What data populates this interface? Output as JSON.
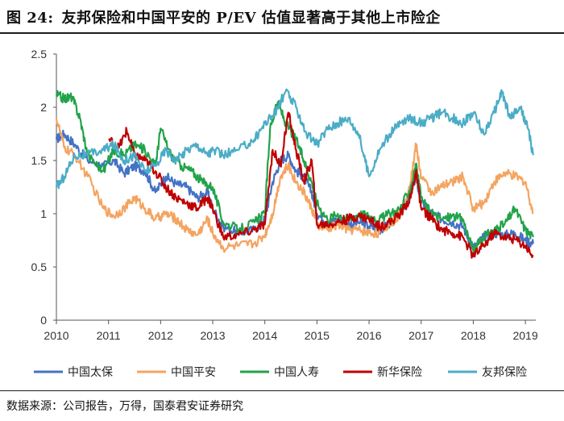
{
  "header": {
    "figure_label": "图 24:",
    "title": "友邦保险和中国平安的 P/EV 估值显著高于其他上市险企"
  },
  "source_note": "数据来源：公司报告，万得，国泰君安证券研究",
  "chart_data": {
    "type": "line",
    "title": "友邦保险和中国平安的 P/EV 估值显著高于其他上市险企",
    "xlabel": "",
    "ylabel": "",
    "xlim": [
      2010,
      2019.2
    ],
    "ylim": [
      0,
      2.5
    ],
    "x_ticks": [
      2010,
      2011,
      2012,
      2013,
      2014,
      2015,
      2016,
      2017,
      2018,
      2019
    ],
    "x_tick_labels": [
      "2010",
      "2011",
      "2012",
      "2013",
      "2014",
      "2015",
      "2016",
      "2017",
      "2018",
      "2019"
    ],
    "y_ticks": [
      0,
      0.5,
      1,
      1.5,
      2,
      2.5
    ],
    "y_tick_labels": [
      "0",
      "0.5",
      "1",
      "1.5",
      "2",
      "2.5"
    ],
    "grid": false,
    "legend_position": "bottom",
    "series": [
      {
        "name": "中国太保",
        "color": "#4472C4",
        "points": [
          [
            2010,
            1.7
          ],
          [
            2010.15,
            1.75
          ],
          [
            2010.35,
            1.65
          ],
          [
            2010.6,
            1.5
          ],
          [
            2010.9,
            1.45
          ],
          [
            2011.1,
            1.5
          ],
          [
            2011.3,
            1.38
          ],
          [
            2011.5,
            1.45
          ],
          [
            2011.7,
            1.4
          ],
          [
            2011.9,
            1.2
          ],
          [
            2012.1,
            1.35
          ],
          [
            2012.3,
            1.28
          ],
          [
            2012.5,
            1.25
          ],
          [
            2012.7,
            1.15
          ],
          [
            2012.9,
            1.2
          ],
          [
            2013.0,
            1.05
          ],
          [
            2013.2,
            0.88
          ],
          [
            2013.5,
            0.82
          ],
          [
            2013.8,
            0.85
          ],
          [
            2014.0,
            0.95
          ],
          [
            2014.15,
            1.3
          ],
          [
            2014.3,
            1.5
          ],
          [
            2014.45,
            1.55
          ],
          [
            2014.6,
            1.4
          ],
          [
            2014.75,
            1.35
          ],
          [
            2014.9,
            1.2
          ],
          [
            2015.0,
            1.0
          ],
          [
            2015.2,
            0.92
          ],
          [
            2015.4,
            0.95
          ],
          [
            2015.6,
            0.9
          ],
          [
            2015.8,
            0.92
          ],
          [
            2016.0,
            0.88
          ],
          [
            2016.2,
            0.85
          ],
          [
            2016.4,
            0.9
          ],
          [
            2016.6,
            1.0
          ],
          [
            2016.8,
            1.2
          ],
          [
            2016.9,
            1.35
          ],
          [
            2017.0,
            1.1
          ],
          [
            2017.2,
            1.0
          ],
          [
            2017.4,
            0.95
          ],
          [
            2017.6,
            0.92
          ],
          [
            2017.8,
            0.88
          ],
          [
            2018.0,
            0.68
          ],
          [
            2018.2,
            0.78
          ],
          [
            2018.4,
            0.82
          ],
          [
            2018.6,
            0.8
          ],
          [
            2018.8,
            0.82
          ],
          [
            2019.0,
            0.75
          ],
          [
            2019.15,
            0.72
          ]
        ]
      },
      {
        "name": "中国平安",
        "color": "#F4A460",
        "points": [
          [
            2010,
            1.9
          ],
          [
            2010.15,
            1.62
          ],
          [
            2010.35,
            1.55
          ],
          [
            2010.6,
            1.35
          ],
          [
            2010.9,
            1.05
          ],
          [
            2011.1,
            0.98
          ],
          [
            2011.3,
            1.05
          ],
          [
            2011.5,
            1.15
          ],
          [
            2011.7,
            1.05
          ],
          [
            2011.9,
            0.95
          ],
          [
            2012.1,
            1.0
          ],
          [
            2012.3,
            0.95
          ],
          [
            2012.5,
            0.85
          ],
          [
            2012.7,
            0.8
          ],
          [
            2012.9,
            0.95
          ],
          [
            2013.0,
            0.82
          ],
          [
            2013.2,
            0.68
          ],
          [
            2013.5,
            0.7
          ],
          [
            2013.8,
            0.72
          ],
          [
            2014.0,
            0.8
          ],
          [
            2014.15,
            1.0
          ],
          [
            2014.3,
            1.35
          ],
          [
            2014.45,
            1.45
          ],
          [
            2014.6,
            1.3
          ],
          [
            2014.75,
            1.2
          ],
          [
            2014.9,
            1.05
          ],
          [
            2015.0,
            0.9
          ],
          [
            2015.2,
            0.85
          ],
          [
            2015.4,
            0.9
          ],
          [
            2015.6,
            0.85
          ],
          [
            2015.8,
            0.85
          ],
          [
            2016.0,
            0.82
          ],
          [
            2016.2,
            0.82
          ],
          [
            2016.4,
            0.9
          ],
          [
            2016.6,
            1.0
          ],
          [
            2016.8,
            1.3
          ],
          [
            2016.9,
            1.65
          ],
          [
            2017.0,
            1.35
          ],
          [
            2017.2,
            1.2
          ],
          [
            2017.4,
            1.25
          ],
          [
            2017.6,
            1.3
          ],
          [
            2017.8,
            1.35
          ],
          [
            2018.0,
            1.05
          ],
          [
            2018.2,
            1.1
          ],
          [
            2018.4,
            1.3
          ],
          [
            2018.6,
            1.38
          ],
          [
            2018.8,
            1.35
          ],
          [
            2019.0,
            1.3
          ],
          [
            2019.15,
            1.0
          ]
        ]
      },
      {
        "name": "中国人寿",
        "color": "#22A34A",
        "points": [
          [
            2010,
            2.12
          ],
          [
            2010.15,
            2.08
          ],
          [
            2010.3,
            2.1
          ],
          [
            2010.45,
            1.9
          ],
          [
            2010.6,
            1.55
          ],
          [
            2010.9,
            1.4
          ],
          [
            2011.1,
            1.6
          ],
          [
            2011.3,
            1.55
          ],
          [
            2011.5,
            1.65
          ],
          [
            2011.7,
            1.6
          ],
          [
            2011.9,
            1.45
          ],
          [
            2012.0,
            1.8
          ],
          [
            2012.2,
            1.55
          ],
          [
            2012.4,
            1.45
          ],
          [
            2012.6,
            1.4
          ],
          [
            2012.8,
            1.3
          ],
          [
            2013.0,
            1.25
          ],
          [
            2013.2,
            0.92
          ],
          [
            2013.5,
            0.85
          ],
          [
            2013.8,
            0.92
          ],
          [
            2014.0,
            1.0
          ],
          [
            2014.1,
            1.8
          ],
          [
            2014.25,
            2.05
          ],
          [
            2014.4,
            1.85
          ],
          [
            2014.6,
            1.7
          ],
          [
            2014.75,
            1.5
          ],
          [
            2014.9,
            1.3
          ],
          [
            2015.0,
            1.1
          ],
          [
            2015.2,
            0.95
          ],
          [
            2015.4,
            1.0
          ],
          [
            2015.6,
            0.95
          ],
          [
            2015.8,
            1.0
          ],
          [
            2016.0,
            0.98
          ],
          [
            2016.2,
            0.95
          ],
          [
            2016.4,
            1.0
          ],
          [
            2016.6,
            1.05
          ],
          [
            2016.8,
            1.25
          ],
          [
            2016.9,
            1.45
          ],
          [
            2017.0,
            1.15
          ],
          [
            2017.2,
            1.0
          ],
          [
            2017.4,
            0.95
          ],
          [
            2017.6,
            0.98
          ],
          [
            2017.8,
            0.95
          ],
          [
            2018.0,
            0.65
          ],
          [
            2018.2,
            0.78
          ],
          [
            2018.4,
            0.85
          ],
          [
            2018.6,
            0.9
          ],
          [
            2018.8,
            1.05
          ],
          [
            2019.0,
            0.85
          ],
          [
            2019.15,
            0.78
          ]
        ]
      },
      {
        "name": "新华保险",
        "color": "#C00000",
        "points": [
          [
            2011.0,
            1.7
          ],
          [
            2011.2,
            1.62
          ],
          [
            2011.35,
            1.78
          ],
          [
            2011.5,
            1.55
          ],
          [
            2011.7,
            1.5
          ],
          [
            2011.9,
            1.4
          ],
          [
            2012.1,
            1.25
          ],
          [
            2012.3,
            1.15
          ],
          [
            2012.5,
            1.1
          ],
          [
            2012.7,
            1.05
          ],
          [
            2012.9,
            1.15
          ],
          [
            2013.0,
            1.05
          ],
          [
            2013.2,
            0.78
          ],
          [
            2013.5,
            0.8
          ],
          [
            2013.8,
            0.85
          ],
          [
            2014.0,
            0.9
          ],
          [
            2014.15,
            1.6
          ],
          [
            2014.3,
            1.45
          ],
          [
            2014.45,
            1.95
          ],
          [
            2014.6,
            1.6
          ],
          [
            2014.75,
            1.3
          ],
          [
            2014.9,
            1.5
          ],
          [
            2015.0,
            0.9
          ],
          [
            2015.2,
            0.9
          ],
          [
            2015.4,
            0.92
          ],
          [
            2015.6,
            0.95
          ],
          [
            2015.8,
            0.98
          ],
          [
            2016.0,
            0.95
          ],
          [
            2016.2,
            0.88
          ],
          [
            2016.4,
            0.92
          ],
          [
            2016.6,
            1.0
          ],
          [
            2016.8,
            1.15
          ],
          [
            2016.9,
            1.4
          ],
          [
            2017.0,
            1.05
          ],
          [
            2017.2,
            0.95
          ],
          [
            2017.4,
            0.85
          ],
          [
            2017.6,
            0.82
          ],
          [
            2017.8,
            0.78
          ],
          [
            2018.0,
            0.6
          ],
          [
            2018.2,
            0.7
          ],
          [
            2018.4,
            0.82
          ],
          [
            2018.6,
            0.78
          ],
          [
            2018.8,
            0.76
          ],
          [
            2019.0,
            0.7
          ],
          [
            2019.15,
            0.6
          ]
        ]
      },
      {
        "name": "友邦保险",
        "color": "#4BACC6",
        "points": [
          [
            2010,
            1.25
          ],
          [
            2010.15,
            1.35
          ],
          [
            2010.35,
            1.55
          ],
          [
            2010.6,
            1.55
          ],
          [
            2010.9,
            1.6
          ],
          [
            2011.1,
            1.65
          ],
          [
            2011.3,
            1.5
          ],
          [
            2011.5,
            1.55
          ],
          [
            2011.7,
            1.4
          ],
          [
            2011.9,
            1.45
          ],
          [
            2012.1,
            1.6
          ],
          [
            2012.3,
            1.5
          ],
          [
            2012.5,
            1.6
          ],
          [
            2012.7,
            1.65
          ],
          [
            2012.9,
            1.55
          ],
          [
            2013.0,
            1.6
          ],
          [
            2013.2,
            1.55
          ],
          [
            2013.5,
            1.6
          ],
          [
            2013.8,
            1.7
          ],
          [
            2014.0,
            1.85
          ],
          [
            2014.2,
            1.95
          ],
          [
            2014.4,
            2.15
          ],
          [
            2014.6,
            2.0
          ],
          [
            2014.8,
            1.75
          ],
          [
            2015.0,
            1.65
          ],
          [
            2015.2,
            1.8
          ],
          [
            2015.4,
            1.85
          ],
          [
            2015.6,
            1.9
          ],
          [
            2015.8,
            1.75
          ],
          [
            2016.0,
            1.35
          ],
          [
            2016.2,
            1.6
          ],
          [
            2016.4,
            1.75
          ],
          [
            2016.6,
            1.85
          ],
          [
            2016.8,
            1.9
          ],
          [
            2017.0,
            1.85
          ],
          [
            2017.2,
            1.9
          ],
          [
            2017.4,
            1.95
          ],
          [
            2017.6,
            1.9
          ],
          [
            2017.8,
            1.85
          ],
          [
            2018.0,
            1.95
          ],
          [
            2018.2,
            1.75
          ],
          [
            2018.4,
            1.95
          ],
          [
            2018.55,
            2.15
          ],
          [
            2018.7,
            1.9
          ],
          [
            2018.9,
            2.0
          ],
          [
            2019.05,
            1.8
          ],
          [
            2019.15,
            1.55
          ]
        ]
      }
    ]
  }
}
